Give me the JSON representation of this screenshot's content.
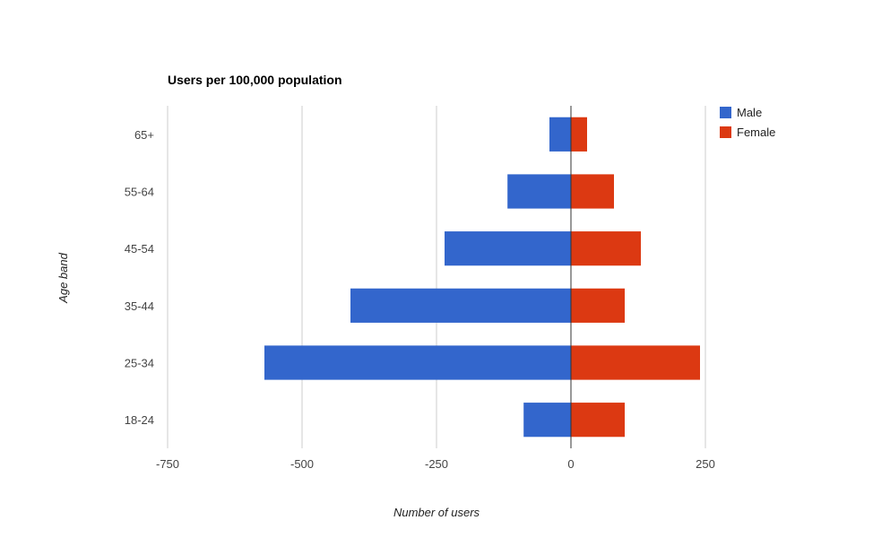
{
  "chart_data": {
    "type": "bar",
    "orientation": "horizontal",
    "stacked": true,
    "title": "Users per 100,000 population",
    "xlabel": "Number of users",
    "ylabel": "Age band",
    "categories": [
      "65+",
      "55-64",
      "45-54",
      "35-44",
      "25-34",
      "18-24"
    ],
    "series": [
      {
        "name": "Male",
        "color": "#3366cc",
        "values": [
          -40,
          -118,
          -235,
          -410,
          -570,
          -88
        ]
      },
      {
        "name": "Female",
        "color": "#dc3912",
        "values": [
          30,
          80,
          130,
          100,
          240,
          100
        ]
      }
    ],
    "xlim": [
      -750,
      250
    ],
    "xticks": [
      -750,
      -500,
      -250,
      0,
      250
    ],
    "xtick_labels": [
      "-750",
      "-500",
      "-250",
      "0",
      "250"
    ],
    "grid": true,
    "legend_position": "right"
  }
}
